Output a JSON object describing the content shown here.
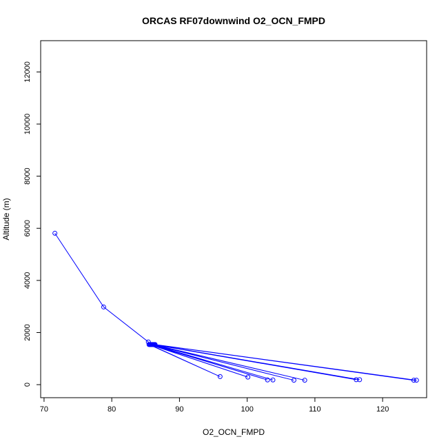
{
  "chart_data": {
    "type": "line",
    "title": "ORCAS RF07downwind O2_OCN_FMPD",
    "xlabel": "O2_OCN_FMPD",
    "ylabel": "Altitude (m)",
    "xlim": [
      69.5,
      126.5
    ],
    "ylim": [
      -500,
      13200
    ],
    "xticks": [
      70,
      80,
      90,
      100,
      110,
      120
    ],
    "yticks": [
      0,
      2000,
      4000,
      6000,
      8000,
      10000,
      12000
    ],
    "grid": false,
    "legend": "none",
    "series": [
      {
        "color": "#0000ff",
        "marker": "open-circle",
        "points": [
          {
            "x": 71.6,
            "y": 5810
          },
          {
            "x": 78.8,
            "y": 2980
          },
          {
            "x": 85.4,
            "y": 1640
          },
          {
            "x": 85.5,
            "y": 1540
          },
          {
            "x": 96.0,
            "y": 310
          },
          {
            "x": 85.6,
            "y": 1540
          },
          {
            "x": 100.1,
            "y": 290
          },
          {
            "x": 85.7,
            "y": 1540
          },
          {
            "x": 103.0,
            "y": 180
          },
          {
            "x": 85.8,
            "y": 1540
          },
          {
            "x": 103.8,
            "y": 180
          },
          {
            "x": 85.9,
            "y": 1540
          },
          {
            "x": 106.9,
            "y": 170
          },
          {
            "x": 86.0,
            "y": 1540
          },
          {
            "x": 108.5,
            "y": 170
          },
          {
            "x": 86.1,
            "y": 1540
          },
          {
            "x": 116.1,
            "y": 190
          },
          {
            "x": 86.2,
            "y": 1540
          },
          {
            "x": 116.6,
            "y": 190
          },
          {
            "x": 86.3,
            "y": 1540
          },
          {
            "x": 124.6,
            "y": 170
          },
          {
            "x": 86.4,
            "y": 1540
          },
          {
            "x": 125.0,
            "y": 170
          }
        ]
      }
    ]
  }
}
